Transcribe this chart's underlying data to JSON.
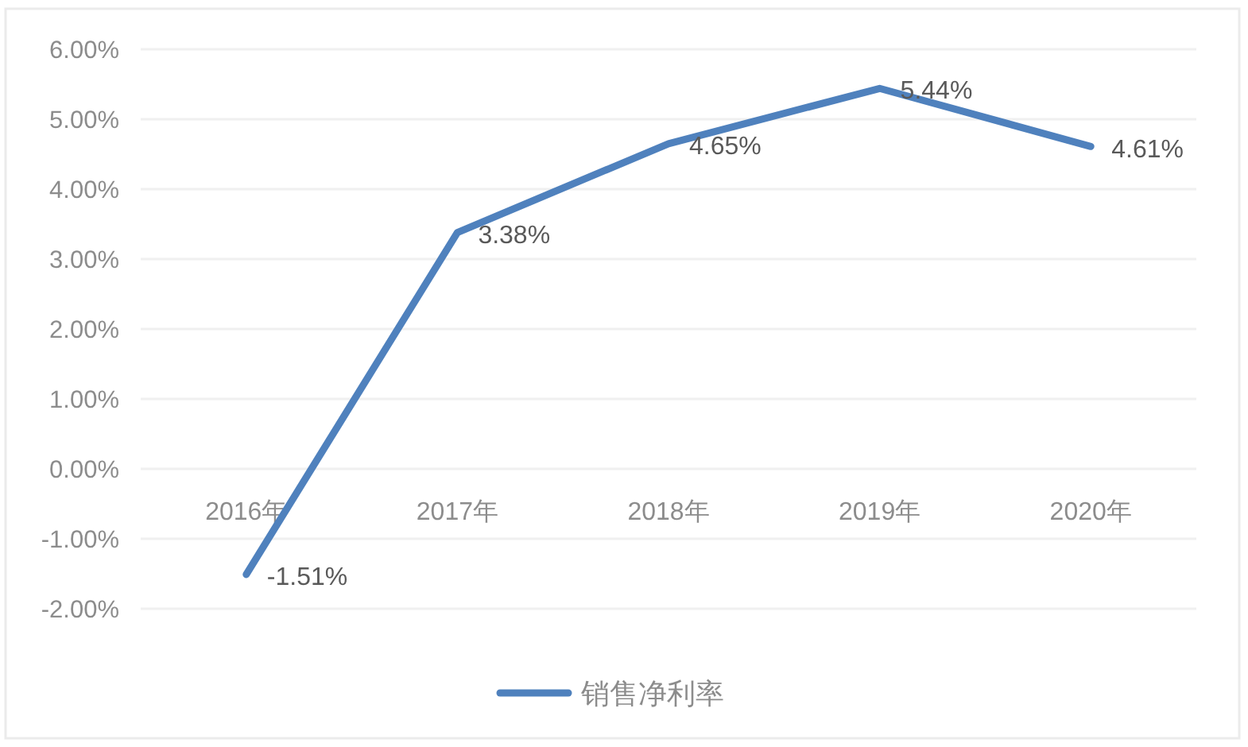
{
  "chart_data": {
    "type": "line",
    "categories": [
      "2016年",
      "2017年",
      "2018年",
      "2019年",
      "2020年"
    ],
    "series": [
      {
        "name": "销售净利率",
        "color": "#4f81bd",
        "values": [
          -1.51,
          3.38,
          4.65,
          5.44,
          4.61
        ],
        "value_labels": [
          "-1.51%",
          "3.38%",
          "4.65%",
          "5.44%",
          "4.61%"
        ]
      }
    ],
    "ylim": [
      -2,
      6
    ],
    "yticks": [
      {
        "value": 6,
        "label": "6.00%"
      },
      {
        "value": 5,
        "label": "5.00%"
      },
      {
        "value": 4,
        "label": "4.00%"
      },
      {
        "value": 3,
        "label": "3.00%"
      },
      {
        "value": 2,
        "label": "2.00%"
      },
      {
        "value": 1,
        "label": "1.00%"
      },
      {
        "value": 0,
        "label": "0.00%"
      },
      {
        "value": -1,
        "label": "-1.00%"
      },
      {
        "value": -2,
        "label": "-2.00%"
      }
    ],
    "grid": "y",
    "legend": "bottom",
    "line_style": "solid"
  }
}
